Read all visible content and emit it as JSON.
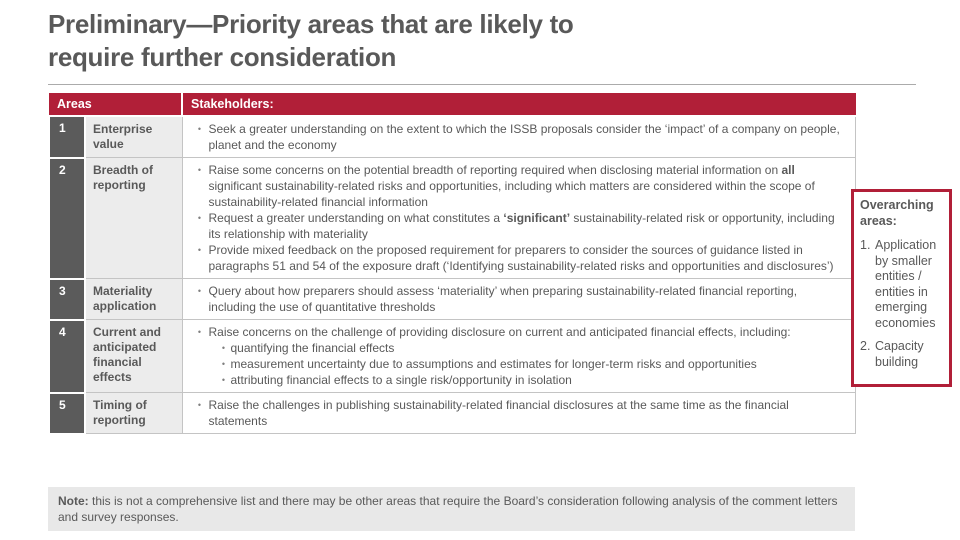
{
  "slide": {
    "title_line1": "Preliminary—Priority areas that are likely to",
    "title_line2": "require further consideration"
  },
  "colors": {
    "accent_red": "#B11F38",
    "dark_gray": "#5B5B5B",
    "text_gray": "#595959",
    "light_cell_gray": "#ECECEC",
    "note_bg_gray": "#E8E8E8"
  },
  "table": {
    "header": {
      "areas": "Areas",
      "stakeholders": "Stakeholders:"
    },
    "rows": [
      {
        "num": "1",
        "area": "Enterprise value",
        "bullets": [
          {
            "lvl": 1,
            "seg": [
              {
                "t": "Seek a greater understanding on the extent to which the ISSB proposals consider the ‘impact’ of a company on people, planet and the economy"
              }
            ]
          }
        ]
      },
      {
        "num": "2",
        "area": "Breadth of reporting",
        "bullets": [
          {
            "lvl": 1,
            "seg": [
              {
                "t": "Raise some concerns on the potential breadth of reporting required when disclosing material information on "
              },
              {
                "t": "all",
                "b": true
              },
              {
                "t": " significant sustainability-related risks and opportunities, including which matters are considered within the scope of sustainability-related financial information"
              }
            ]
          },
          {
            "lvl": 1,
            "seg": [
              {
                "t": "Request a greater understanding on what constitutes a "
              },
              {
                "t": "‘significant’",
                "b": true
              },
              {
                "t": " sustainability-related risk or opportunity, including its relationship with materiality"
              }
            ]
          },
          {
            "lvl": 1,
            "seg": [
              {
                "t": "Provide mixed feedback on the proposed requirement for preparers to consider the sources of guidance listed in paragraphs 51 and 54 of the exposure draft (‘Identifying sustainability-related risks and opportunities and disclosures’)"
              }
            ]
          }
        ]
      },
      {
        "num": "3",
        "area": "Materiality application",
        "bullets": [
          {
            "lvl": 1,
            "seg": [
              {
                "t": "Query about how preparers should assess ‘materiality’ when preparing sustainability-related financial reporting, including the use of quantitative thresholds"
              }
            ]
          }
        ]
      },
      {
        "num": "4",
        "area": "Current and anticipated financial effects",
        "bullets": [
          {
            "lvl": 1,
            "seg": [
              {
                "t": "Raise concerns on the challenge of providing disclosure on current and anticipated financial effects, including:"
              }
            ]
          },
          {
            "lvl": 2,
            "seg": [
              {
                "t": "quantifying the financial effects"
              }
            ]
          },
          {
            "lvl": 2,
            "seg": [
              {
                "t": "measurement uncertainty due to assumptions and estimates for longer-term risks and opportunities"
              }
            ]
          },
          {
            "lvl": 2,
            "seg": [
              {
                "t": "attributing financial effects to a single risk/opportunity in isolation"
              }
            ]
          }
        ]
      },
      {
        "num": "5",
        "area": "Timing of reporting",
        "bullets": [
          {
            "lvl": 1,
            "seg": [
              {
                "t": "Raise the challenges in publishing sustainability-related financial disclosures at the same time as the financial statements"
              }
            ]
          }
        ]
      }
    ]
  },
  "overarching": {
    "title": "Overarching areas:",
    "items": [
      "Application by smaller entities / entities in emerging economies",
      "Capacity building"
    ]
  },
  "note": {
    "label": "Note:",
    "text": " this is not a comprehensive list and there may be other areas that require the Board’s consideration following analysis of the comment letters and survey responses."
  }
}
